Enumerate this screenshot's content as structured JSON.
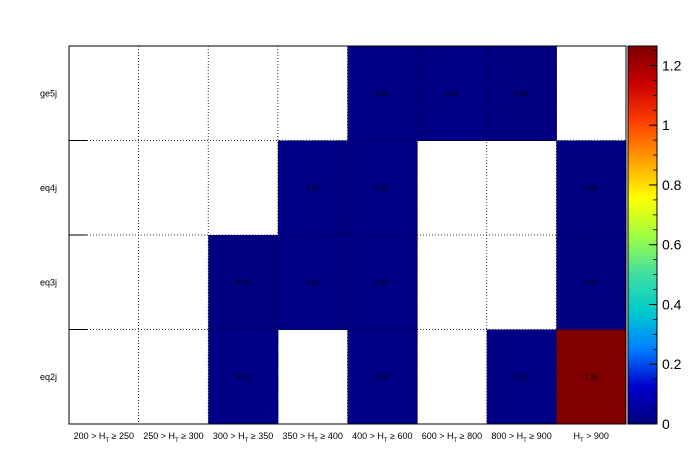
{
  "chart_data": {
    "type": "heatmap",
    "title": "",
    "xlabel": "",
    "ylabel": "",
    "x_categories": [
      [
        "200 > H",
        "T",
        " ≥ 250"
      ],
      [
        "250 > H",
        "T",
        " ≥ 300"
      ],
      [
        "300 > H",
        "T",
        " ≥ 350"
      ],
      [
        "350 > H",
        "T",
        " ≥ 400"
      ],
      [
        "400 > H",
        "T",
        " ≥ 600"
      ],
      [
        "600 > H",
        "T",
        " ≥ 800"
      ],
      [
        "800 > H",
        "T",
        " ≥ 900"
      ],
      [
        "H",
        "T",
        " > 900"
      ]
    ],
    "y_categories": [
      "eq2j",
      "eq3j",
      "eq4j",
      "ge5j"
    ],
    "cells": [
      {
        "x": 4,
        "y": 3,
        "value": 0.01,
        "label": "0.01"
      },
      {
        "x": 5,
        "y": 3,
        "value": 0.01,
        "label": "0.01"
      },
      {
        "x": 6,
        "y": 3,
        "value": 0.0,
        "label": "0.00"
      },
      {
        "x": 3,
        "y": 2,
        "value": 0.01,
        "label": "0.01"
      },
      {
        "x": 4,
        "y": 2,
        "value": 0.01,
        "label": "0.01"
      },
      {
        "x": 7,
        "y": 2,
        "value": 0.0,
        "label": "0.00"
      },
      {
        "x": 2,
        "y": 1,
        "value": 0.0,
        "label": "0.00"
      },
      {
        "x": 3,
        "y": 1,
        "value": 0.01,
        "label": "0.01"
      },
      {
        "x": 4,
        "y": 1,
        "value": 0.01,
        "label": "0.01"
      },
      {
        "x": 7,
        "y": 1,
        "value": 0.0,
        "label": "0.00"
      },
      {
        "x": 2,
        "y": 0,
        "value": 0.01,
        "label": "0.01"
      },
      {
        "x": 4,
        "y": 0,
        "value": 0.01,
        "label": "0.01"
      },
      {
        "x": 6,
        "y": 0,
        "value": 0.01,
        "label": "0.01"
      },
      {
        "x": 7,
        "y": 0,
        "value": 1.26,
        "label": "1.26"
      }
    ],
    "zlim": [
      0,
      1.26
    ],
    "colorbar_ticks": [
      {
        "value": 0,
        "label": "0"
      },
      {
        "value": 0.2,
        "label": "0.2"
      },
      {
        "value": 0.4,
        "label": "0.4"
      },
      {
        "value": 0.6,
        "label": "0.6"
      },
      {
        "value": 0.8,
        "label": "0.8"
      },
      {
        "value": 1.0,
        "label": "1"
      },
      {
        "value": 1.2,
        "label": "1.2"
      }
    ],
    "colormap": [
      "#000080",
      "#0000cc",
      "#0080ff",
      "#00cccc",
      "#40e0a0",
      "#a0ff40",
      "#ffff00",
      "#ffa000",
      "#ff4000",
      "#cc0000",
      "#800000"
    ],
    "grid": true,
    "colorbar": "right"
  }
}
